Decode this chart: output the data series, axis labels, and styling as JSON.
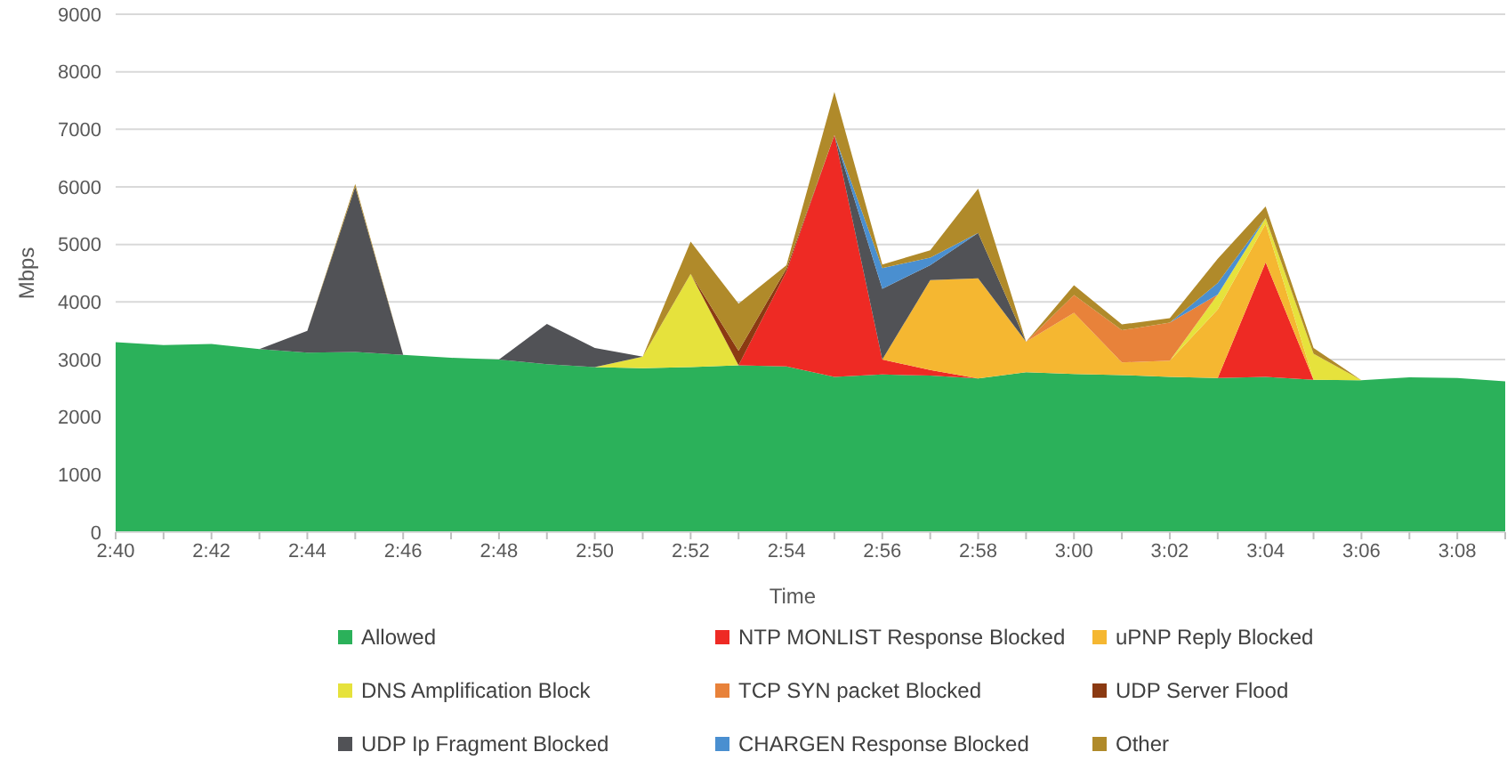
{
  "chart_data": {
    "type": "area",
    "stacked": true,
    "xlabel": "Time",
    "ylabel": "Mbps",
    "ylim": [
      0,
      9000
    ],
    "yticks": [
      0,
      1000,
      2000,
      3000,
      4000,
      5000,
      6000,
      7000,
      8000,
      9000
    ],
    "grid": "y",
    "legend": "bottom",
    "categories": [
      "2:40",
      null,
      "2:42",
      null,
      "2:44",
      null,
      "2:46",
      null,
      "2:48",
      null,
      "2:50",
      null,
      "2:52",
      null,
      "2:54",
      null,
      "2:56",
      null,
      "2:58",
      null,
      "3:00",
      null,
      "3:02",
      null,
      "3:04",
      null,
      "3:06",
      null,
      "3:08",
      null
    ],
    "series": [
      {
        "name": "Allowed",
        "color": "#2bb15a",
        "values": [
          3300,
          3250,
          3270,
          3180,
          3120,
          3130,
          3080,
          3030,
          3000,
          2920,
          2870,
          2850,
          2870,
          2900,
          2880,
          2700,
          2740,
          2720,
          2670,
          2780,
          2750,
          2730,
          2700,
          2680,
          2700,
          2650,
          2640,
          2690,
          2680,
          2620
        ]
      },
      {
        "name": "NTP MONLIST Response Blocked",
        "color": "#ee2a24",
        "values": [
          null,
          null,
          null,
          null,
          null,
          null,
          null,
          null,
          null,
          null,
          null,
          null,
          null,
          0,
          1650,
          4200,
          260,
          100,
          0,
          null,
          null,
          null,
          null,
          0,
          1990,
          0,
          null,
          null,
          null,
          null
        ]
      },
      {
        "name": "uPNP Reply Blocked",
        "color": "#f5b731",
        "values": [
          null,
          null,
          null,
          null,
          null,
          null,
          null,
          null,
          null,
          null,
          null,
          null,
          null,
          null,
          null,
          null,
          0,
          1560,
          1740,
          530,
          1060,
          220,
          280,
          1190,
          670,
          0,
          null,
          null,
          null,
          null
        ]
      },
      {
        "name": "DNS Amplification Block",
        "color": "#e6e23c",
        "values": [
          null,
          null,
          null,
          null,
          null,
          null,
          null,
          null,
          null,
          null,
          0,
          200,
          1620,
          0,
          null,
          null,
          null,
          null,
          null,
          null,
          null,
          null,
          0,
          260,
          100,
          450,
          0,
          null,
          null,
          null
        ]
      },
      {
        "name": "TCP SYN packet Blocked",
        "color": "#e8823a",
        "values": [
          null,
          null,
          null,
          null,
          null,
          null,
          null,
          null,
          null,
          null,
          null,
          null,
          null,
          null,
          null,
          null,
          null,
          null,
          null,
          0,
          310,
          560,
          660,
          0,
          null,
          null,
          null,
          null,
          null,
          null
        ]
      },
      {
        "name": "UDP Server Flood",
        "color": "#8b3a12",
        "values": [
          null,
          null,
          null,
          null,
          null,
          null,
          null,
          null,
          null,
          null,
          null,
          null,
          0,
          250,
          50,
          0,
          null,
          null,
          null,
          null,
          null,
          null,
          null,
          null,
          null,
          null,
          null,
          null,
          null,
          null
        ]
      },
      {
        "name": "UDP Ip Fragment Blocked",
        "color": "#515256",
        "values": [
          null,
          null,
          null,
          0,
          380,
          2870,
          0,
          null,
          0,
          700,
          330,
          0,
          null,
          null,
          null,
          0,
          1230,
          260,
          790,
          0,
          null,
          null,
          null,
          null,
          null,
          null,
          null,
          null,
          null,
          null
        ]
      },
      {
        "name": "CHARGEN Response Blocked",
        "color": "#4a8fd0",
        "values": [
          null,
          null,
          null,
          null,
          null,
          null,
          null,
          null,
          null,
          null,
          null,
          null,
          null,
          null,
          null,
          0,
          360,
          130,
          0,
          null,
          null,
          null,
          0,
          200,
          0,
          null,
          null,
          null,
          null,
          null
        ]
      },
      {
        "name": "Other",
        "color": "#b08a2a",
        "values": [
          null,
          null,
          null,
          null,
          0,
          50,
          0,
          null,
          null,
          null,
          null,
          0,
          560,
          820,
          60,
          750,
          60,
          130,
          770,
          0,
          170,
          100,
          80,
          420,
          200,
          100,
          0,
          null,
          null,
          null
        ]
      }
    ]
  }
}
